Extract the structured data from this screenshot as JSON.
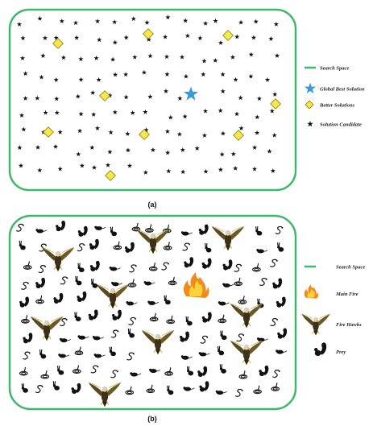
{
  "panel_a": {
    "caption": "(a)",
    "legend": {
      "search_space": "Search Space",
      "global_best": "Global Best Solution",
      "better": "Better Solutions",
      "candidate": "Solution Candidate"
    }
  },
  "panel_b": {
    "caption": "(b)",
    "legend": {
      "search_space": "Search Space",
      "main_fire": "Main Fire",
      "fire_hawks": "Fire Hawks",
      "prey": "Prey"
    }
  },
  "colors": {
    "border": "#3fb86a",
    "global_best": "#3a9ad9",
    "better": "#f4e84a",
    "better_stroke": "#8a7d00",
    "candidate": "#111111",
    "fire_outer": "#f08a1a",
    "fire_inner": "#ffd23a"
  },
  "icons": {
    "candidate": "star-icon",
    "global_best": "blue-star-icon",
    "better": "diamond-icon",
    "main_fire": "fire-icon",
    "hawk": "hawk-icon",
    "prey": "squirrel-icon"
  }
}
